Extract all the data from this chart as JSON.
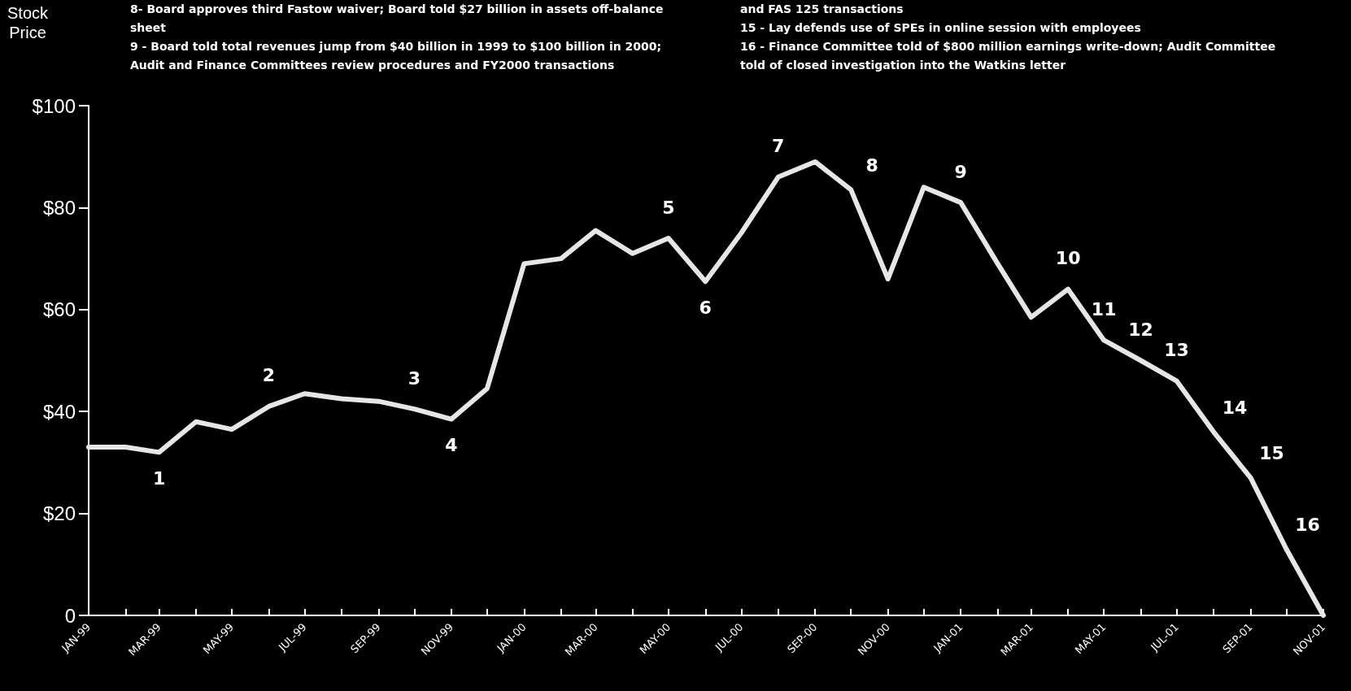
{
  "chart_data": {
    "type": "line",
    "ylabel": "Stock Price",
    "x": [
      "1999-01",
      "1999-02",
      "1999-03",
      "1999-04",
      "1999-05",
      "1999-06",
      "1999-07",
      "1999-08",
      "1999-09",
      "1999-10",
      "1999-11",
      "1999-12",
      "2000-01",
      "2000-02",
      "2000-03",
      "2000-04",
      "2000-05",
      "2000-06",
      "2000-07",
      "2000-08",
      "2000-09",
      "2000-10",
      "2000-11",
      "2000-12",
      "2001-01",
      "2001-02",
      "2001-03",
      "2001-04",
      "2001-05",
      "2001-06",
      "2001-07",
      "2001-08",
      "2001-09",
      "2001-10",
      "2001-11"
    ],
    "series": [
      {
        "color": "#e6e6e6",
        "values": [
          33,
          33,
          32,
          38,
          36.5,
          41,
          43.5,
          42.5,
          42,
          40.5,
          38.5,
          44.5,
          69,
          70,
          75.5,
          71,
          74,
          65.5,
          75,
          86,
          89,
          83.5,
          66,
          84,
          81,
          69,
          58.5,
          64,
          54,
          50,
          46,
          36,
          27,
          13,
          0
        ]
      }
    ],
    "xlim": [
      "1999-01",
      "2001-11"
    ],
    "xticks": [
      {
        "value": "1999-01",
        "label": "JAN-99"
      },
      {
        "value": "1999-02",
        "label": null
      },
      {
        "value": "1999-03",
        "label": "MAR-99"
      },
      {
        "value": "1999-04",
        "label": null
      },
      {
        "value": "1999-05",
        "label": "MAY-99"
      },
      {
        "value": "1999-06",
        "label": null
      },
      {
        "value": "1999-07",
        "label": "JUL-99"
      },
      {
        "value": "1999-08",
        "label": null
      },
      {
        "value": "1999-09",
        "label": "SEP-99"
      },
      {
        "value": "1999-10",
        "label": null
      },
      {
        "value": "1999-11",
        "label": "NOV-99"
      },
      {
        "value": "1999-12",
        "label": null
      },
      {
        "value": "2000-01",
        "label": "JAN-00"
      },
      {
        "value": "2000-02",
        "label": null
      },
      {
        "value": "2000-03",
        "label": "MAR-00"
      },
      {
        "value": "2000-04",
        "label": null
      },
      {
        "value": "2000-05",
        "label": "MAY-00"
      },
      {
        "value": "2000-06",
        "label": null
      },
      {
        "value": "2000-07",
        "label": "JUL-00"
      },
      {
        "value": "2000-08",
        "label": null
      },
      {
        "value": "2000-09",
        "label": "SEP-00"
      },
      {
        "value": "2000-10",
        "label": null
      },
      {
        "value": "2000-11",
        "label": "NOV-00"
      },
      {
        "value": "2000-12",
        "label": null
      },
      {
        "value": "2001-01",
        "label": "JAN-01"
      },
      {
        "value": "2001-02",
        "label": null
      },
      {
        "value": "2001-03",
        "label": "MAR-01"
      },
      {
        "value": "2001-04",
        "label": null
      },
      {
        "value": "2001-05",
        "label": "MAY-01"
      },
      {
        "value": "2001-06",
        "label": null
      },
      {
        "value": "2001-07",
        "label": "JUL-01"
      },
      {
        "value": "2001-08",
        "label": null
      },
      {
        "value": "2001-09",
        "label": "SEP-01"
      },
      {
        "value": "2001-10",
        "label": null
      },
      {
        "value": "2001-11",
        "label": "NOV-01"
      }
    ],
    "ylim": [
      0,
      100
    ],
    "yticks": [
      0,
      {
        "value": 20,
        "label": "$20"
      },
      {
        "value": 40,
        "label": "$40"
      },
      {
        "value": 60,
        "label": "$60"
      },
      {
        "value": 80,
        "label": "$80"
      },
      {
        "value": 100,
        "label": "$100"
      }
    ],
    "grid": false,
    "marker": "none",
    "line_style": "solid",
    "annotations": [
      "8- Board approves third Fastow waiver; Board told $27 billion in assets off-balance sheet",
      "9 - Board told total revenues jump from $40 billion in 1999 to $100 billion in 2000; Audit and Finance Committees review procedures and FY2000 transactions",
      "and FAS 125 transactions",
      "15 - Lay defends use of SPEs in online session with employees",
      "16 - Finance Committee told of $800 million earnings write-down; Audit Committee told of closed investigation into the Watkins letter",
      {
        "text": "1",
        "x": "1999-03",
        "y": 32
      },
      {
        "text": "2",
        "x": "1999-06",
        "y": 41
      },
      {
        "text": "3",
        "x": "1999-10",
        "y": 40.5
      },
      {
        "text": "4",
        "x": "1999-11",
        "y": 38.5
      },
      {
        "text": "5",
        "x": "2000-05",
        "y": 74
      },
      {
        "text": "6",
        "x": "2000-06",
        "y": 65.5
      },
      {
        "text": "7",
        "x": "2000-08",
        "y": 86
      },
      {
        "text": "8",
        "x": "2000-10",
        "y": 83.5
      },
      {
        "text": "9",
        "x": "2001-01",
        "y": 81
      },
      {
        "text": "10",
        "x": "2001-04",
        "y": 64
      },
      {
        "text": "11",
        "x": "2001-05",
        "y": 54
      },
      {
        "text": "12",
        "x": "2001-06",
        "y": 50
      },
      {
        "text": "13",
        "x": "2001-07",
        "y": 46
      },
      {
        "text": "14",
        "x": "2001-08",
        "y": 36
      },
      {
        "text": "15",
        "x": "2001-09",
        "y": 27
      },
      {
        "text": "16",
        "x": "2001-10",
        "y": 13
      }
    ]
  }
}
